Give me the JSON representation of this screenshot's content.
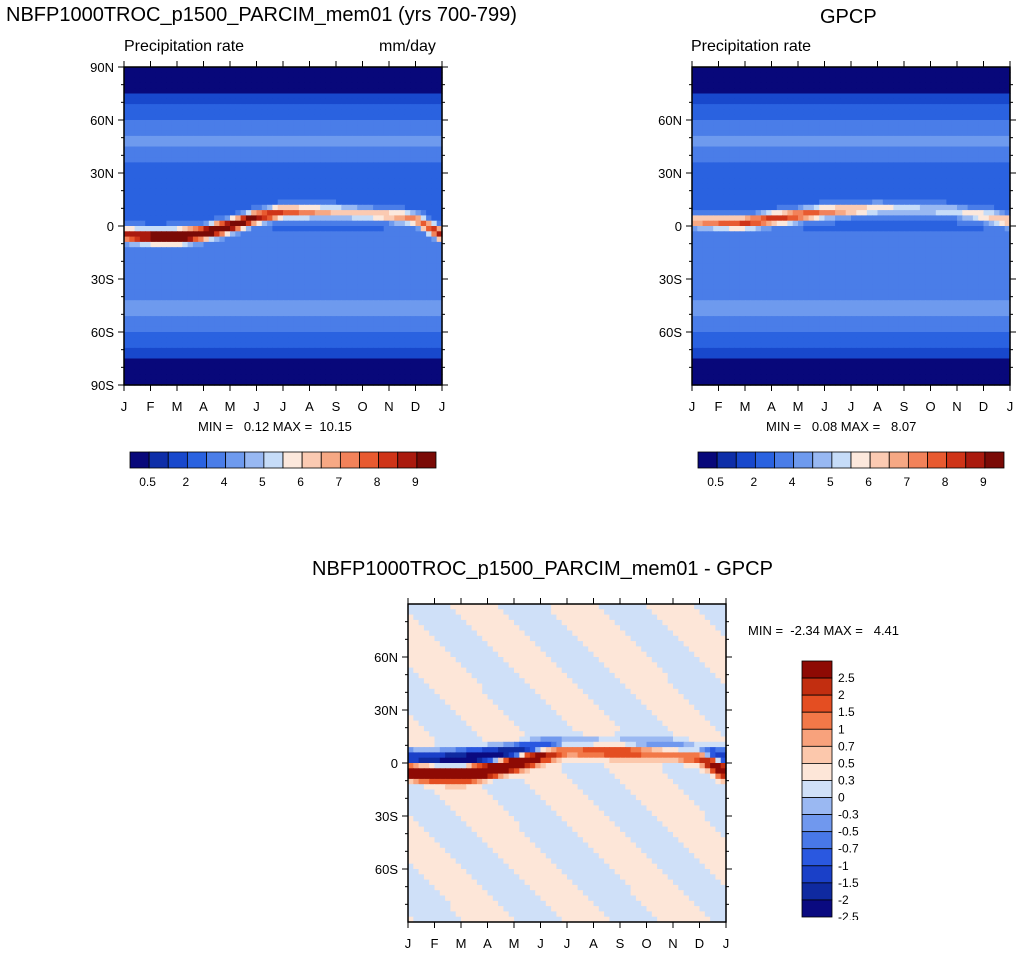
{
  "panels": [
    {
      "title": "NBFP1000TROC_p1500_PARCIM_mem01 (yrs 700-799)",
      "subtitle_left": "Precipitation rate",
      "subtitle_right": "mm/day",
      "minmax": "MIN =   0.12 MAX =  10.15"
    },
    {
      "title": "GPCP",
      "subtitle_left": "Precipitation rate",
      "subtitle_right": "",
      "minmax": "MIN =   0.08 MAX =   8.07"
    },
    {
      "title": "NBFP1000TROC_p1500_PARCIM_mem01 - GPCP",
      "subtitle_left": "",
      "subtitle_right": "",
      "minmax": "MIN =  -2.34 MAX =   4.41"
    }
  ],
  "colors": {
    "precip_scale": [
      "#08087a",
      "#0e2ea8",
      "#1848cc",
      "#2a62e0",
      "#4a7de8",
      "#6e9aee",
      "#98b8f2",
      "#c6dcf8",
      "#fce8dc",
      "#fbcab2",
      "#f6a884",
      "#f2825a",
      "#e85a30",
      "#cf3418",
      "#aa1a0e",
      "#7a0a06"
    ],
    "diff_scale": [
      "#0a0a80",
      "#0f2aa0",
      "#1a40c8",
      "#2a58e0",
      "#4878e8",
      "#7098ee",
      "#9ab8f2",
      "#cfe0f8",
      "#fde6d8",
      "#fcc8ac",
      "#f8a27c",
      "#f27848",
      "#e44e22",
      "#c22e10",
      "#8e0a04"
    ]
  },
  "chart_data": [
    {
      "type": "heatmap",
      "title": "NBFP1000TROC_p1500_PARCIM_mem01 (yrs 700-799)",
      "variable": "Precipitation rate",
      "units": "mm/day",
      "x": [
        "J",
        "F",
        "M",
        "A",
        "M",
        "J",
        "J",
        "A",
        "S",
        "O",
        "N",
        "D",
        "J"
      ],
      "y": [
        "90N",
        "60N",
        "30N",
        "0",
        "30S",
        "60S",
        "90S"
      ],
      "xlim": [
        0,
        12
      ],
      "ylim": [
        -90,
        90
      ],
      "min": 0.12,
      "max": 10.15,
      "colorbar_labels": [
        "0.5",
        "2",
        "4",
        "5",
        "6",
        "7",
        "8",
        "9"
      ],
      "itcz": {
        "peak_lat_by_month": [
          -5,
          -6,
          -6,
          -4,
          0,
          5,
          8,
          8,
          8,
          7,
          6,
          4,
          -5
        ],
        "peak_value": 10.15
      }
    },
    {
      "type": "heatmap",
      "title": "GPCP",
      "variable": "Precipitation rate",
      "x": [
        "J",
        "F",
        "M",
        "A",
        "M",
        "J",
        "J",
        "A",
        "S",
        "O",
        "N",
        "D",
        "J"
      ],
      "y": [
        "60N",
        "30N",
        "0",
        "30S",
        "60S"
      ],
      "xlim": [
        0,
        12
      ],
      "ylim": [
        -90,
        90
      ],
      "min": 0.08,
      "max": 8.07,
      "colorbar_labels": [
        "0.5",
        "2",
        "4",
        "5",
        "6",
        "7",
        "8",
        "9"
      ],
      "itcz": {
        "peak_lat_by_month": [
          3,
          2,
          2,
          4,
          6,
          8,
          9,
          10,
          10,
          9,
          8,
          6,
          3
        ],
        "peak_value": 8.07
      }
    },
    {
      "type": "heatmap",
      "title": "NBFP1000TROC_p1500_PARCIM_mem01 - GPCP",
      "x": [
        "J",
        "F",
        "M",
        "A",
        "M",
        "J",
        "J",
        "A",
        "S",
        "O",
        "N",
        "D",
        "J"
      ],
      "y": [
        "60N",
        "30N",
        "0",
        "30S",
        "60S"
      ],
      "xlim": [
        0,
        12
      ],
      "ylim": [
        -90,
        90
      ],
      "min": -2.34,
      "max": 4.41,
      "colorbar_labels": [
        "2.5",
        "2",
        "1.5",
        "1",
        "0.7",
        "0.5",
        "0.3",
        "0",
        "-0.3",
        "-0.5",
        "-0.7",
        "-1",
        "-1.5",
        "-2",
        "-2.5"
      ]
    }
  ]
}
